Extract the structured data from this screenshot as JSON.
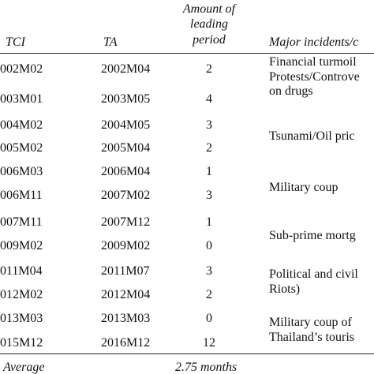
{
  "header": {
    "tci": "TCI",
    "ta": "TA",
    "amount_line1": "Amount of",
    "amount_line2": "leading",
    "amount_line3": "period",
    "incidents": "Major incidents/c"
  },
  "rows": [
    {
      "tci": "002M02",
      "ta": "2002M04",
      "amount": "2"
    },
    {
      "tci": "003M01",
      "ta": "2003M05",
      "amount": "4"
    },
    {
      "tci": "004M02",
      "ta": "2004M05",
      "amount": "3"
    },
    {
      "tci": "005M02",
      "ta": "2005M04",
      "amount": "2"
    },
    {
      "tci": "006M03",
      "ta": "2006M04",
      "amount": "1"
    },
    {
      "tci": "006M11",
      "ta": "2007M02",
      "amount": "3"
    },
    {
      "tci": "007M11",
      "ta": "2007M12",
      "amount": "1"
    },
    {
      "tci": "009M02",
      "ta": "2009M02",
      "amount": "0"
    },
    {
      "tci": "011M04",
      "ta": "2011M07",
      "amount": "3"
    },
    {
      "tci": "012M02",
      "ta": "2012M04",
      "amount": "2"
    },
    {
      "tci": "013M03",
      "ta": "2013M03",
      "amount": "0"
    },
    {
      "tci": "015M12",
      "ta": "2016M12",
      "amount": "12"
    }
  ],
  "incidents": [
    "Financial turmoil",
    "Protests/Controve",
    "on drugs",
    "Tsunami/Oil pric",
    "Military coup",
    "Sub-prime mortg",
    "Political and civil",
    "Riots)",
    "Military coup of",
    "Thailand’s touris"
  ],
  "footer": {
    "label": "Average",
    "value": "2.75 months"
  }
}
